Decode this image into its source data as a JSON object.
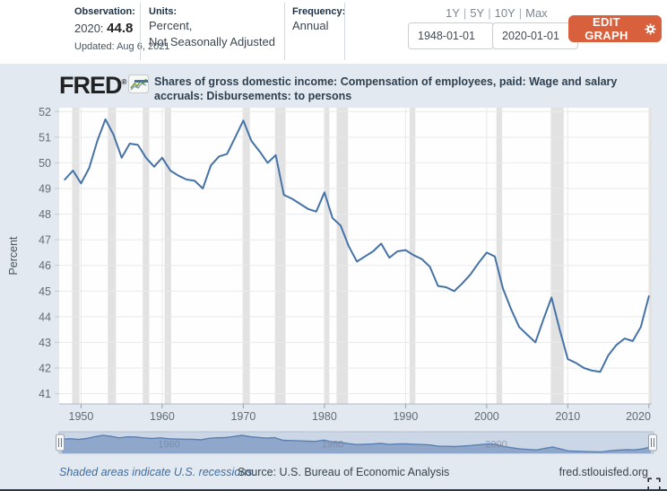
{
  "header": {
    "observation_label": "Observation:",
    "observation_prefix": "2020: ",
    "observation_value": "44.8",
    "updated": "Updated: Aug 6, 2021",
    "units_label": "Units:",
    "units_line1": "Percent,",
    "units_line2": "Not Seasonally Adjusted",
    "frequency_label": "Frequency:",
    "frequency_value": "Annual",
    "range_links": [
      "1Y",
      "5Y",
      "10Y",
      "Max"
    ],
    "range_separator": "|",
    "date_start": "1948-01-01",
    "date_end": "2020-01-01",
    "edit_graph_label": "EDIT GRAPH"
  },
  "branding": {
    "logo_text": "FRED",
    "trademark": "®"
  },
  "legend": {
    "series_title": "Shares of gross domestic income: Compensation of employees, paid: Wage and salary accruals: Disbursements: to persons"
  },
  "footer": {
    "recession_note": "Shaded areas indicate U.S. recessions.",
    "source": "Source: U.S. Bureau of Economic Analysis",
    "site": "fred.stlouisfed.org"
  },
  "colors": {
    "accent": "#d8603c",
    "line": "#4572a7",
    "link": "#3b6ea5",
    "graph_bg": "#e3e9f0",
    "recession": "#e2e2e2",
    "grid": "#e7e9eb",
    "axis": "#aeb9c4",
    "tick_text": "#606c76",
    "nav_fill": "#8ea7cb",
    "nav_line": "#5c80b2",
    "nav_track": "#cbd7e6",
    "nav_border": "#b3bfce"
  },
  "chart_data": {
    "type": "line",
    "title": "Shares of gross domestic income: Compensation of employees, paid: Wage and salary accruals: Disbursements: to persons",
    "ylabel": "Percent",
    "xlabel": "",
    "frequency": "Annual",
    "x_start": 1948,
    "x_end": 2020,
    "values": [
      49.35,
      49.7,
      49.2,
      49.8,
      50.85,
      51.7,
      51.1,
      50.2,
      50.75,
      50.7,
      50.2,
      49.85,
      50.2,
      49.7,
      49.5,
      49.35,
      49.3,
      49.0,
      49.9,
      50.25,
      50.35,
      51.0,
      51.65,
      50.85,
      50.45,
      50.0,
      50.3,
      48.75,
      48.6,
      48.4,
      48.2,
      48.1,
      48.85,
      47.85,
      47.55,
      46.75,
      46.15,
      46.35,
      46.55,
      46.85,
      46.3,
      46.55,
      46.6,
      46.4,
      46.25,
      45.95,
      45.2,
      45.15,
      45.0,
      45.3,
      45.65,
      46.1,
      46.5,
      46.35,
      45.1,
      44.3,
      43.6,
      43.3,
      43.0,
      43.9,
      44.75,
      43.5,
      42.35,
      42.2,
      42.0,
      41.9,
      41.85,
      42.5,
      42.9,
      43.15,
      43.05,
      43.6,
      44.8
    ],
    "ylim": [
      40.6,
      52.15
    ],
    "xlim": [
      1947.3,
      2020.35
    ],
    "y_ticks": [
      41,
      42,
      43,
      44,
      45,
      46,
      47,
      48,
      49,
      50,
      51,
      52
    ],
    "x_ticks": [
      1950,
      1960,
      1970,
      1980,
      1990,
      2000,
      2010,
      2020
    ],
    "recessions": [
      [
        1948.9,
        1949.8
      ],
      [
        1953.3,
        1954.3
      ],
      [
        1957.6,
        1958.4
      ],
      [
        1960.3,
        1961.1
      ],
      [
        1969.9,
        1970.8
      ],
      [
        1973.9,
        1975.2
      ],
      [
        1980.0,
        1980.6
      ],
      [
        1981.5,
        1982.9
      ],
      [
        1990.5,
        1991.2
      ],
      [
        2001.2,
        2001.9
      ],
      [
        2007.9,
        2009.5
      ],
      [
        2020.0,
        2020.35
      ]
    ],
    "grid": true,
    "legend_position": "top",
    "navigator": {
      "labels": [
        1960,
        1980,
        2000
      ],
      "vmin": 41,
      "vmax": 52.2
    }
  }
}
